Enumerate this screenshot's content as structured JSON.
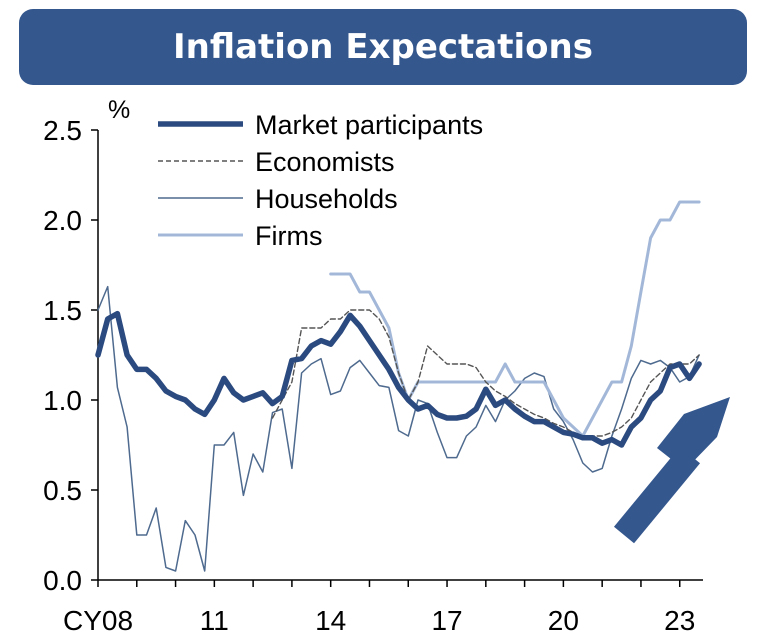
{
  "chart_data": {
    "type": "line",
    "title": "Inflation Expectations",
    "ylabel": "%",
    "ylim": [
      0.0,
      2.5
    ],
    "xlim": [
      2008,
      2023.6
    ],
    "yticks": [
      0.0,
      0.5,
      1.0,
      1.5,
      2.0,
      2.5
    ],
    "ytick_labels": [
      "0.0",
      "0.5",
      "1.0",
      "1.5",
      "2.0",
      "2.5"
    ],
    "xtick_labels": [
      {
        "label": "CY08",
        "x": 2008
      },
      {
        "label": "11",
        "x": 2011
      },
      {
        "label": "14",
        "x": 2014
      },
      {
        "label": "17",
        "x": 2017
      },
      {
        "label": "20",
        "x": 2020
      },
      {
        "label": "23",
        "x": 2023
      }
    ],
    "legend": {
      "position": "top-left"
    },
    "grid": false,
    "series": [
      {
        "name": "Market participants",
        "color": "#2b4a7f",
        "style": "thick",
        "x": [
          2008.0,
          2008.25,
          2008.5,
          2008.75,
          2009.0,
          2009.25,
          2009.5,
          2009.75,
          2010.0,
          2010.25,
          2010.5,
          2010.75,
          2011.0,
          2011.25,
          2011.5,
          2011.75,
          2012.0,
          2012.25,
          2012.5,
          2012.75,
          2013.0,
          2013.25,
          2013.5,
          2013.75,
          2014.0,
          2014.25,
          2014.5,
          2014.75,
          2015.0,
          2015.25,
          2015.5,
          2015.75,
          2016.0,
          2016.25,
          2016.5,
          2016.75,
          2017.0,
          2017.25,
          2017.5,
          2017.75,
          2018.0,
          2018.25,
          2018.5,
          2018.75,
          2019.0,
          2019.25,
          2019.5,
          2019.75,
          2020.0,
          2020.25,
          2020.5,
          2020.75,
          2021.0,
          2021.25,
          2021.5,
          2021.75,
          2022.0,
          2022.25,
          2022.5,
          2022.75,
          2023.0,
          2023.25,
          2023.5
        ],
        "values": [
          1.25,
          1.45,
          1.48,
          1.25,
          1.17,
          1.17,
          1.12,
          1.05,
          1.02,
          1.0,
          0.95,
          0.92,
          1.0,
          1.12,
          1.04,
          1.0,
          1.02,
          1.04,
          0.98,
          1.02,
          1.22,
          1.23,
          1.3,
          1.33,
          1.31,
          1.38,
          1.47,
          1.41,
          1.33,
          1.25,
          1.17,
          1.07,
          1.0,
          0.95,
          0.97,
          0.92,
          0.9,
          0.9,
          0.91,
          0.95,
          1.06,
          0.97,
          1.0,
          0.95,
          0.91,
          0.88,
          0.88,
          0.85,
          0.82,
          0.81,
          0.79,
          0.79,
          0.76,
          0.78,
          0.75,
          0.85,
          0.9,
          1.0,
          1.05,
          1.18,
          1.2,
          1.12,
          1.2
        ]
      },
      {
        "name": "Economists",
        "color": "#555555",
        "style": "dashed",
        "x": [
          2012.5,
          2012.75,
          2013.0,
          2013.25,
          2013.5,
          2013.75,
          2014.0,
          2014.25,
          2014.5,
          2014.75,
          2015.0,
          2015.25,
          2015.5,
          2015.75,
          2016.0,
          2016.25,
          2016.5,
          2016.75,
          2017.0,
          2017.25,
          2017.5,
          2017.75,
          2018.0,
          2018.25,
          2018.5,
          2018.75,
          2019.0,
          2019.25,
          2019.5,
          2019.75,
          2020.0,
          2020.25,
          2020.5,
          2020.75,
          2021.0,
          2021.25,
          2021.5,
          2021.75,
          2022.0,
          2022.25,
          2022.5,
          2022.75,
          2023.0,
          2023.25,
          2023.5
        ],
        "values": [
          0.9,
          1.0,
          1.1,
          1.4,
          1.4,
          1.4,
          1.45,
          1.45,
          1.5,
          1.5,
          1.5,
          1.45,
          1.35,
          1.15,
          1.0,
          1.1,
          1.3,
          1.25,
          1.2,
          1.2,
          1.2,
          1.18,
          1.1,
          1.05,
          1.02,
          0.98,
          0.95,
          0.92,
          0.9,
          0.87,
          0.85,
          0.82,
          0.8,
          0.8,
          0.8,
          0.82,
          0.85,
          0.9,
          1.0,
          1.1,
          1.15,
          1.2,
          1.2,
          1.2,
          1.25
        ]
      },
      {
        "name": "Households",
        "color": "#4e6a8e",
        "style": "thin",
        "x": [
          2008.0,
          2008.25,
          2008.5,
          2008.75,
          2009.0,
          2009.25,
          2009.5,
          2009.75,
          2010.0,
          2010.25,
          2010.5,
          2010.75,
          2011.0,
          2011.25,
          2011.5,
          2011.75,
          2012.0,
          2012.25,
          2012.5,
          2012.75,
          2013.0,
          2013.25,
          2013.5,
          2013.75,
          2014.0,
          2014.25,
          2014.5,
          2014.75,
          2015.0,
          2015.25,
          2015.5,
          2015.75,
          2016.0,
          2016.25,
          2016.5,
          2016.75,
          2017.0,
          2017.25,
          2017.5,
          2017.75,
          2018.0,
          2018.25,
          2018.5,
          2018.75,
          2019.0,
          2019.25,
          2019.5,
          2019.75,
          2020.0,
          2020.25,
          2020.5,
          2020.75,
          2021.0,
          2021.25,
          2021.5,
          2021.75,
          2022.0,
          2022.25,
          2022.5,
          2022.75,
          2023.0,
          2023.25,
          2023.5
        ],
        "values": [
          1.5,
          1.63,
          1.07,
          0.85,
          0.25,
          0.25,
          0.4,
          0.07,
          0.05,
          0.33,
          0.25,
          0.05,
          0.75,
          0.75,
          0.82,
          0.47,
          0.7,
          0.6,
          0.93,
          0.95,
          0.62,
          1.15,
          1.2,
          1.23,
          1.03,
          1.05,
          1.18,
          1.22,
          1.15,
          1.08,
          1.07,
          0.83,
          0.8,
          1.0,
          0.98,
          0.82,
          0.68,
          0.68,
          0.8,
          0.85,
          0.97,
          0.88,
          1.0,
          1.05,
          1.12,
          1.15,
          1.13,
          0.95,
          0.88,
          0.78,
          0.65,
          0.6,
          0.62,
          0.8,
          0.95,
          1.12,
          1.22,
          1.2,
          1.22,
          1.18,
          1.1,
          1.13,
          1.25
        ]
      },
      {
        "name": "Firms",
        "color": "#a3b8d8",
        "style": "medium",
        "x": [
          2014.0,
          2014.25,
          2014.5,
          2014.75,
          2015.0,
          2015.25,
          2015.5,
          2015.75,
          2016.0,
          2016.25,
          2016.5,
          2016.75,
          2017.0,
          2017.25,
          2017.5,
          2017.75,
          2018.0,
          2018.25,
          2018.5,
          2018.75,
          2019.0,
          2019.25,
          2019.5,
          2019.75,
          2020.0,
          2020.25,
          2020.5,
          2020.75,
          2021.0,
          2021.25,
          2021.5,
          2021.75,
          2022.0,
          2022.25,
          2022.5,
          2022.75,
          2023.0,
          2023.25,
          2023.5
        ],
        "values": [
          1.7,
          1.7,
          1.7,
          1.6,
          1.6,
          1.5,
          1.4,
          1.15,
          1.0,
          1.1,
          1.1,
          1.1,
          1.1,
          1.1,
          1.1,
          1.1,
          1.1,
          1.1,
          1.2,
          1.1,
          1.1,
          1.1,
          1.1,
          1.0,
          0.9,
          0.85,
          0.8,
          0.9,
          1.0,
          1.1,
          1.1,
          1.3,
          1.6,
          1.9,
          2.0,
          2.0,
          2.1,
          2.1,
          2.1
        ]
      }
    ],
    "annotation": {
      "type": "arrow",
      "direction": "up-right",
      "color": "#34578e"
    }
  }
}
